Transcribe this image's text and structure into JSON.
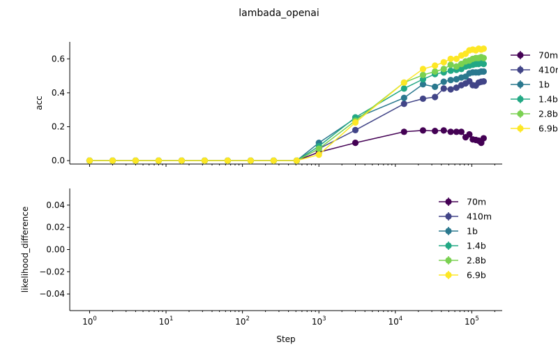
{
  "figure_title": "lambada_openai",
  "colors": {
    "70m": "#440154",
    "410m": "#414487",
    "1b": "#2a788e",
    "1.4b": "#22a884",
    "2.8b": "#7ad151",
    "6.9b": "#fde725"
  },
  "chart_data": [
    {
      "type": "line",
      "x_scale": "log",
      "xlim": [
        0.55,
        250000
      ],
      "ylim": [
        -0.02,
        0.7
      ],
      "xlabel": "",
      "ylabel": "acc",
      "yticks": [
        "0.0",
        "0.2",
        "0.4",
        "0.6"
      ],
      "ytick_values": [
        0,
        0.2,
        0.4,
        0.6
      ],
      "xticks": [
        "10^0",
        "10^1",
        "10^2",
        "10^3",
        "10^4",
        "10^5"
      ],
      "show_xtick_labels": false,
      "legend": "outside-right",
      "x": [
        1,
        2,
        4,
        8,
        16,
        32,
        64,
        128,
        256,
        512,
        1000,
        3000,
        13000,
        23000,
        33000,
        43000,
        53000,
        63000,
        73000,
        83000,
        93000,
        103000,
        113000,
        123000,
        133000,
        143000
      ],
      "series": [
        {
          "name": "70m",
          "values": [
            0,
            0,
            0,
            0,
            0,
            0,
            0,
            0,
            0,
            0,
            0.05,
            0.105,
            0.17,
            0.178,
            0.175,
            0.178,
            0.17,
            0.17,
            0.17,
            0.138,
            0.155,
            0.125,
            0.122,
            0.118,
            0.105,
            0.132
          ]
        },
        {
          "name": "410m",
          "values": [
            0,
            0,
            0,
            0,
            0,
            0,
            0,
            0,
            0,
            0,
            0.07,
            0.18,
            0.335,
            0.365,
            0.375,
            0.425,
            0.42,
            0.43,
            0.445,
            0.455,
            0.468,
            0.445,
            0.443,
            0.46,
            0.465,
            0.467
          ]
        },
        {
          "name": "1b",
          "values": [
            0,
            0,
            0,
            0,
            0,
            0,
            0,
            0,
            0,
            0,
            0.105,
            0.25,
            0.37,
            0.45,
            0.435,
            0.465,
            0.475,
            0.48,
            0.49,
            0.495,
            0.515,
            0.52,
            0.52,
            0.52,
            0.525,
            0.525
          ]
        },
        {
          "name": "1.4b",
          "values": [
            0,
            0,
            0,
            0,
            0,
            0,
            0,
            0,
            0,
            0,
            0.085,
            0.255,
            0.425,
            0.48,
            0.51,
            0.52,
            0.53,
            0.535,
            0.54,
            0.555,
            0.56,
            0.565,
            0.57,
            0.57,
            0.575,
            0.57
          ]
        },
        {
          "name": "2.8b",
          "values": [
            0,
            0,
            0,
            0,
            0,
            0,
            0,
            0,
            0,
            0,
            0.07,
            0.235,
            0.46,
            0.505,
            0.525,
            0.54,
            0.565,
            0.555,
            0.57,
            0.585,
            0.59,
            0.6,
            0.605,
            0.605,
            0.61,
            0.605
          ]
        },
        {
          "name": "6.9b",
          "values": [
            0,
            0,
            0,
            0,
            0,
            0,
            0,
            0,
            0,
            0,
            0.035,
            0.225,
            0.46,
            0.54,
            0.56,
            0.58,
            0.6,
            0.6,
            0.62,
            0.63,
            0.65,
            0.655,
            0.65,
            0.66,
            0.655,
            0.66
          ]
        }
      ]
    },
    {
      "type": "line",
      "x_scale": "log",
      "xlim": [
        0.55,
        250000
      ],
      "ylim": [
        -0.055,
        0.055
      ],
      "xlabel": "Step",
      "ylabel": "likelihood_difference",
      "yticks": [
        "0.04",
        "0.02",
        "0.00",
        "−0.02",
        "−0.04"
      ],
      "ytick_values": [
        0.04,
        0.02,
        0,
        -0.02,
        -0.04
      ],
      "xticks": [
        "10^0",
        "10^1",
        "10^2",
        "10^3",
        "10^4",
        "10^5"
      ],
      "show_xtick_labels": true,
      "legend": "top-right",
      "x": [],
      "series": [
        {
          "name": "70m",
          "values": []
        },
        {
          "name": "410m",
          "values": []
        },
        {
          "name": "1b",
          "values": []
        },
        {
          "name": "1.4b",
          "values": []
        },
        {
          "name": "2.8b",
          "values": []
        },
        {
          "name": "6.9b",
          "values": []
        }
      ]
    }
  ]
}
